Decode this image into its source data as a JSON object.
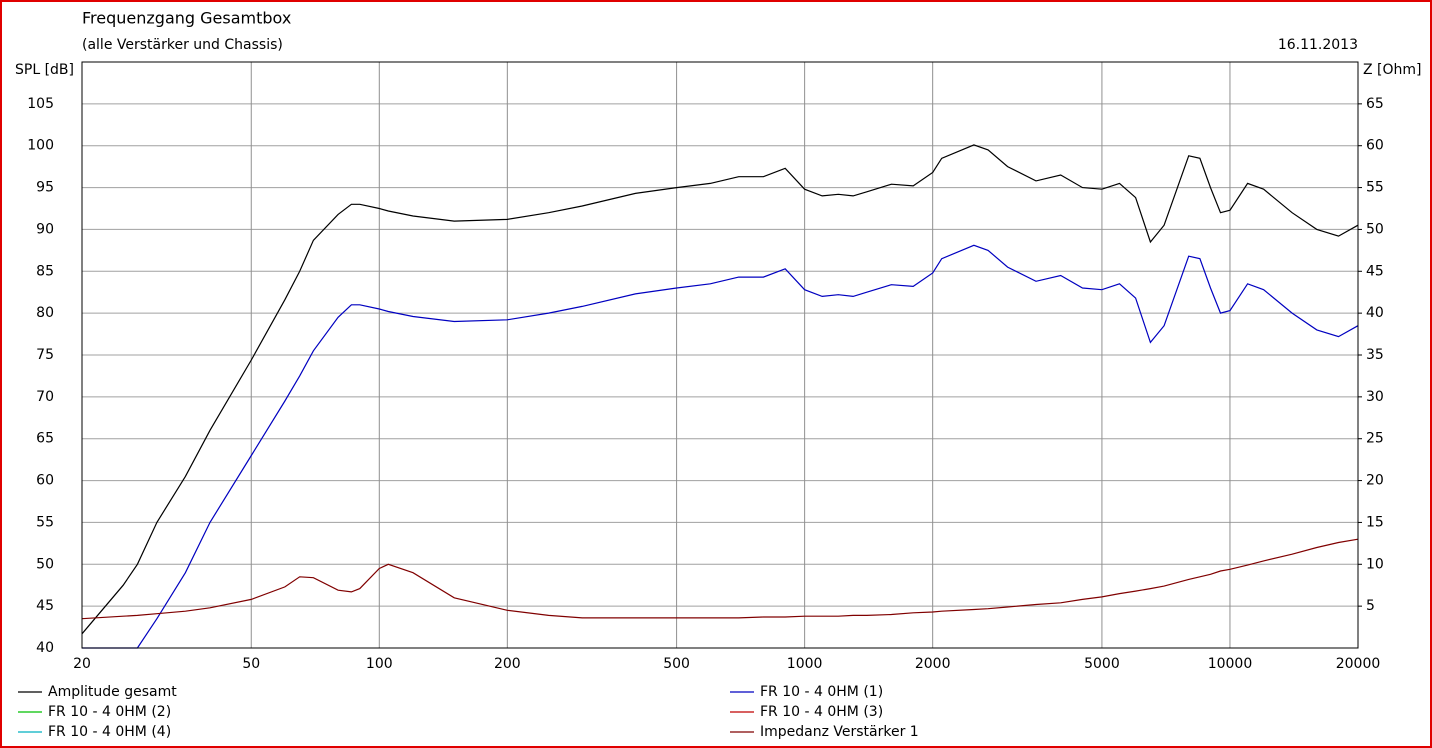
{
  "chart_data": {
    "type": "line",
    "title": "Frequenzgang Gesamtbox",
    "subtitle": "(alle Verstärker und Chassis)",
    "date": "16.11.2013",
    "ylabel": "SPL [dB]",
    "y2label": "Z [Ohm]",
    "log_x": true,
    "grid": true,
    "x": [
      20,
      25,
      27,
      30,
      35,
      40,
      50,
      60,
      65,
      70,
      80,
      86,
      90,
      100,
      105,
      120,
      150,
      200,
      250,
      300,
      400,
      500,
      600,
      700,
      800,
      900,
      1000,
      1100,
      1200,
      1300,
      1400,
      1600,
      1800,
      2000,
      2100,
      2500,
      2700,
      3000,
      3500,
      4000,
      4500,
      5000,
      5500,
      6000,
      6500,
      7000,
      8000,
      8500,
      9000,
      9500,
      10000,
      11000,
      12000,
      14000,
      16000,
      18000,
      20000
    ],
    "xlim": [
      20,
      20000
    ],
    "xticks": [
      20,
      50,
      100,
      200,
      500,
      1000,
      2000,
      5000,
      10000,
      20000
    ],
    "ylim": [
      40,
      110
    ],
    "yticks": [
      40,
      45,
      50,
      55,
      60,
      65,
      70,
      75,
      80,
      85,
      90,
      95,
      100,
      105
    ],
    "y2lim": [
      0,
      70
    ],
    "y2ticks": [
      5,
      10,
      15,
      20,
      25,
      30,
      35,
      40,
      45,
      50,
      55,
      60,
      65
    ],
    "series": [
      {
        "name": "Amplitude gesamt",
        "color": "#000000",
        "values": [
          41.7,
          47.5,
          50,
          55,
          60.5,
          66,
          74.4,
          81.6,
          85,
          88.7,
          91.8,
          93,
          93,
          92.5,
          92.2,
          91.6,
          91,
          91.2,
          92,
          92.8,
          94.3,
          95,
          95.5,
          96.3,
          96.3,
          97.3,
          94.8,
          94,
          94.2,
          94,
          94.5,
          95.4,
          95.2,
          96.8,
          98.5,
          100.1,
          99.5,
          97.5,
          95.8,
          96.5,
          95,
          94.8,
          95.5,
          93.8,
          88.5,
          90.5,
          98.8,
          98.5,
          95,
          92,
          92.3,
          95.5,
          94.8,
          92,
          90,
          89.2,
          90.5
        ]
      },
      {
        "name": "FR 10 - 4 0HM (1)",
        "color": "#0000c0",
        "values": [
          40,
          40,
          40,
          43.5,
          49,
          55,
          63,
          69.5,
          72.5,
          75.5,
          79.5,
          81,
          81,
          80.5,
          80.2,
          79.6,
          79,
          79.2,
          80,
          80.8,
          82.3,
          83,
          83.5,
          84.3,
          84.3,
          85.3,
          82.8,
          82,
          82.2,
          82,
          82.5,
          83.4,
          83.2,
          84.8,
          86.5,
          88.1,
          87.5,
          85.5,
          83.8,
          84.5,
          83,
          82.8,
          83.5,
          81.8,
          76.5,
          78.5,
          86.8,
          86.5,
          83,
          80,
          80.3,
          83.5,
          82.8,
          80,
          78,
          77.2,
          78.5
        ]
      },
      {
        "name": "FR 10 - 4 0HM (2)",
        "color": "#00c000"
      },
      {
        "name": "FR 10 - 4 0HM (3)",
        "color": "#c00000"
      },
      {
        "name": "FR 10 - 4 0HM (4)",
        "color": "#00b0c0"
      },
      {
        "name": "Impedanz Verstärker 1",
        "color": "#800000",
        "axis": "y2",
        "values": [
          3.5,
          3.8,
          3.9,
          4.1,
          4.4,
          4.8,
          5.8,
          7.3,
          8.5,
          8.4,
          6.9,
          6.7,
          7.1,
          9.5,
          10,
          9,
          6,
          4.5,
          3.9,
          3.6,
          3.6,
          3.6,
          3.6,
          3.6,
          3.7,
          3.7,
          3.8,
          3.8,
          3.8,
          3.9,
          3.9,
          4,
          4.2,
          4.3,
          4.4,
          4.6,
          4.7,
          4.9,
          5.2,
          5.4,
          5.8,
          6.1,
          6.5,
          6.8,
          7.1,
          7.4,
          8.2,
          8.5,
          8.8,
          9.2,
          9.4,
          9.9,
          10.4,
          11.2,
          12,
          12.6,
          13
        ]
      }
    ]
  }
}
